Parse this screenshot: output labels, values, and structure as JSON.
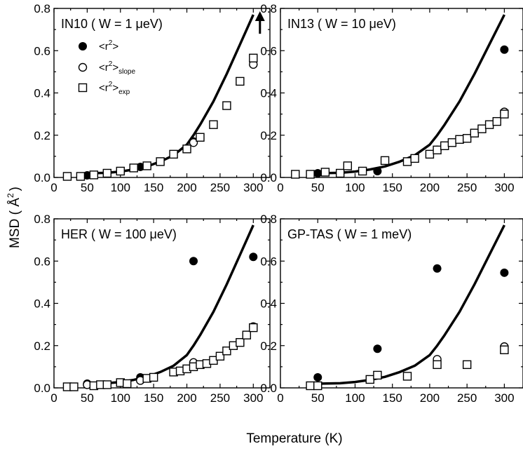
{
  "figure": {
    "ylabel": "MSD ( Å",
    "ylabel_sup": "2",
    "ylabel_end": ")",
    "xlabel": "Temperature (K)",
    "line_color": "#000000"
  },
  "legend": {
    "items": [
      {
        "marker": "filled-circle",
        "base": "<r",
        "sup": "2",
        "close": ">",
        "sub": ""
      },
      {
        "marker": "open-circle",
        "base": "<r",
        "sup": "2",
        "close": ">",
        "sub": "slope"
      },
      {
        "marker": "open-square",
        "base": "<r",
        "sup": "2",
        "close": ">",
        "sub": "exp"
      }
    ]
  },
  "chart_data": [
    {
      "type": "scatter",
      "title": "IN10 ( W = 1 μeV)",
      "xlim": [
        0,
        325
      ],
      "ylim": [
        0,
        0.8
      ],
      "xticks": [
        0,
        50,
        100,
        150,
        200,
        250,
        300
      ],
      "yticks": [
        0.0,
        0.2,
        0.4,
        0.6,
        0.8
      ],
      "xtick_labels": [
        "0",
        "50",
        "100",
        "150",
        "200",
        "250",
        "300"
      ],
      "ytick_labels": [
        "0.0",
        "0.2",
        "0.4",
        "0.6",
        "0.8"
      ],
      "arrow": {
        "x": 310,
        "y_from": 0.68,
        "y_to": 0.78,
        "direction": "up"
      },
      "model_line": {
        "x": [
          50,
          80,
          100,
          120,
          140,
          160,
          180,
          200,
          210,
          220,
          240,
          260,
          280,
          300
        ],
        "y": [
          0.02,
          0.022,
          0.028,
          0.038,
          0.052,
          0.075,
          0.105,
          0.155,
          0.2,
          0.25,
          0.36,
          0.49,
          0.63,
          0.77
        ]
      },
      "series": [
        {
          "name": "<r2>",
          "marker": "filled-circle",
          "x": [
            50,
            130,
            210
          ],
          "y": [
            0.01,
            0.05,
            0.17
          ]
        },
        {
          "name": "<r2>slope",
          "marker": "open-circle",
          "x": [
            210,
            300
          ],
          "y": [
            0.165,
            0.535
          ]
        },
        {
          "name": "<r2>exp",
          "marker": "open-square",
          "x": [
            20,
            40,
            60,
            80,
            100,
            120,
            140,
            160,
            180,
            200,
            220,
            240,
            260,
            280,
            300
          ],
          "y": [
            0.005,
            0.005,
            0.012,
            0.02,
            0.03,
            0.045,
            0.055,
            0.075,
            0.11,
            0.135,
            0.19,
            0.25,
            0.34,
            0.455,
            0.565
          ]
        }
      ]
    },
    {
      "type": "scatter",
      "title": "IN13 ( W = 10 μeV)",
      "xlim": [
        0,
        325
      ],
      "ylim": [
        0,
        0.8
      ],
      "xticks": [
        0,
        50,
        100,
        150,
        200,
        250,
        300
      ],
      "yticks": [
        0.0,
        0.2,
        0.4,
        0.6,
        0.8
      ],
      "xtick_labels": [
        "0",
        "50",
        "100",
        "150",
        "200",
        "250",
        "300"
      ],
      "ytick_labels": [
        "0.0",
        "0.2",
        "0.4",
        "0.6",
        "0.8"
      ],
      "model_line": {
        "x": [
          50,
          80,
          100,
          120,
          140,
          160,
          180,
          200,
          210,
          220,
          240,
          260,
          280,
          300
        ],
        "y": [
          0.02,
          0.022,
          0.028,
          0.038,
          0.052,
          0.075,
          0.105,
          0.155,
          0.2,
          0.25,
          0.36,
          0.49,
          0.63,
          0.77
        ]
      },
      "series": [
        {
          "name": "<r2>",
          "marker": "filled-circle",
          "x": [
            50,
            130,
            210,
            300
          ],
          "y": [
            0.02,
            0.03,
            0.13,
            0.605
          ]
        },
        {
          "name": "<r2>slope",
          "marker": "open-circle",
          "x": [
            210,
            300
          ],
          "y": [
            0.13,
            0.31
          ]
        },
        {
          "name": "<r2>exp",
          "marker": "open-square",
          "x": [
            20,
            40,
            60,
            80,
            90,
            110,
            140,
            170,
            180,
            200,
            210,
            220,
            230,
            240,
            250,
            260,
            270,
            280,
            290,
            300
          ],
          "y": [
            0.015,
            0.015,
            0.025,
            0.02,
            0.055,
            0.03,
            0.08,
            0.075,
            0.09,
            0.11,
            0.13,
            0.15,
            0.165,
            0.18,
            0.185,
            0.21,
            0.23,
            0.25,
            0.265,
            0.3
          ]
        }
      ]
    },
    {
      "type": "scatter",
      "title": "HER ( W = 100 μeV)",
      "xlim": [
        0,
        325
      ],
      "ylim": [
        0,
        0.8
      ],
      "xticks": [
        0,
        50,
        100,
        150,
        200,
        250,
        300
      ],
      "yticks": [
        0.0,
        0.2,
        0.4,
        0.6,
        0.8
      ],
      "xtick_labels": [
        "0",
        "50",
        "100",
        "150",
        "200",
        "250",
        "300"
      ],
      "ytick_labels": [
        "0.0",
        "0.2",
        "0.4",
        "0.6",
        "0.8"
      ],
      "model_line": {
        "x": [
          50,
          80,
          100,
          120,
          140,
          160,
          180,
          200,
          210,
          220,
          240,
          260,
          280,
          300
        ],
        "y": [
          0.02,
          0.022,
          0.028,
          0.038,
          0.052,
          0.075,
          0.105,
          0.155,
          0.2,
          0.25,
          0.36,
          0.49,
          0.63,
          0.77
        ]
      },
      "series": [
        {
          "name": "<r2>",
          "marker": "filled-circle",
          "x": [
            50,
            130,
            210,
            300
          ],
          "y": [
            0.02,
            0.05,
            0.6,
            0.62
          ]
        },
        {
          "name": "<r2>slope",
          "marker": "open-circle",
          "x": [
            50,
            130,
            210,
            300
          ],
          "y": [
            0.015,
            0.035,
            0.12,
            0.29
          ]
        },
        {
          "name": "<r2>exp",
          "marker": "open-square",
          "x": [
            20,
            30,
            60,
            70,
            80,
            100,
            110,
            140,
            150,
            180,
            190,
            200,
            210,
            220,
            230,
            240,
            250,
            260,
            270,
            280,
            290,
            300
          ],
          "y": [
            0.005,
            0.005,
            0.01,
            0.015,
            0.015,
            0.025,
            0.02,
            0.045,
            0.05,
            0.075,
            0.08,
            0.09,
            0.1,
            0.11,
            0.115,
            0.13,
            0.15,
            0.175,
            0.2,
            0.215,
            0.25,
            0.285
          ]
        }
      ]
    },
    {
      "type": "scatter",
      "title": "GP-TAS ( W = 1 meV)",
      "xlim": [
        0,
        325
      ],
      "ylim": [
        0,
        0.8
      ],
      "xticks": [
        0,
        50,
        100,
        150,
        200,
        250,
        300
      ],
      "yticks": [
        0.0,
        0.2,
        0.4,
        0.6,
        0.8
      ],
      "xtick_labels": [
        "0",
        "50",
        "100",
        "150",
        "200",
        "250",
        "300"
      ],
      "ytick_labels": [
        "0.0",
        "0.2",
        "0.4",
        "0.6",
        "0.8"
      ],
      "model_line": {
        "x": [
          50,
          80,
          100,
          120,
          140,
          160,
          180,
          200,
          210,
          220,
          240,
          260,
          280,
          300
        ],
        "y": [
          0.02,
          0.022,
          0.028,
          0.038,
          0.052,
          0.075,
          0.105,
          0.155,
          0.2,
          0.25,
          0.36,
          0.49,
          0.63,
          0.77
        ]
      },
      "series": [
        {
          "name": "<r2>",
          "marker": "filled-circle",
          "x": [
            50,
            130,
            210,
            300
          ],
          "y": [
            0.05,
            0.185,
            0.565,
            0.545
          ]
        },
        {
          "name": "<r2>slope",
          "marker": "open-circle",
          "x": [
            210,
            300
          ],
          "y": [
            0.135,
            0.195
          ]
        },
        {
          "name": "<r2>exp",
          "marker": "open-square",
          "x": [
            40,
            50,
            120,
            130,
            170,
            210,
            250,
            300
          ],
          "y": [
            0.01,
            0.01,
            0.04,
            0.06,
            0.055,
            0.11,
            0.11,
            0.18
          ]
        }
      ]
    }
  ]
}
